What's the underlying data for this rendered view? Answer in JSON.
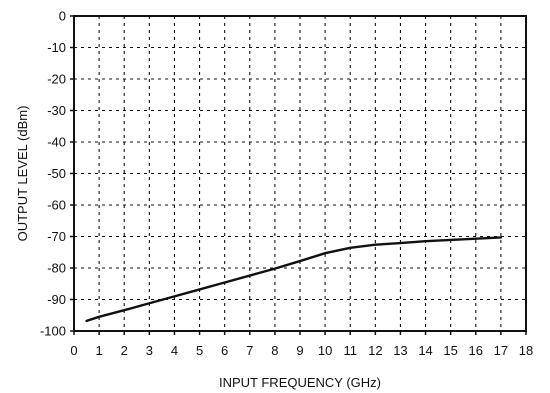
{
  "chart_data": {
    "type": "line",
    "title": "",
    "xlabel": "INPUT FREQUENCY (GHz)",
    "ylabel": "OUTPUT LEVEL (dBm)",
    "xlim": [
      0,
      18
    ],
    "ylim": [
      -100,
      0
    ],
    "grid": true,
    "grid_style": "dashed",
    "colors": {
      "line": "#111111",
      "grid": "#111111",
      "frame": "#111111",
      "text": "#111111",
      "background": "#ffffff"
    },
    "x_ticks": [
      {
        "value": 0,
        "label": "0"
      },
      {
        "value": 1,
        "label": "1"
      },
      {
        "value": 2,
        "label": "2"
      },
      {
        "value": 3,
        "label": "3"
      },
      {
        "value": 4,
        "label": "4"
      },
      {
        "value": 5,
        "label": "5"
      },
      {
        "value": 6,
        "label": "6"
      },
      {
        "value": 7,
        "label": "7"
      },
      {
        "value": 8,
        "label": "8"
      },
      {
        "value": 9,
        "label": "9"
      },
      {
        "value": 10,
        "label": "10"
      },
      {
        "value": 11,
        "label": "11"
      },
      {
        "value": 12,
        "label": "12"
      },
      {
        "value": 13,
        "label": "13"
      },
      {
        "value": 14,
        "label": "14"
      },
      {
        "value": 15,
        "label": "15"
      },
      {
        "value": 16,
        "label": "16"
      },
      {
        "value": 17,
        "label": "17"
      },
      {
        "value": 18,
        "label": "18"
      }
    ],
    "y_ticks": [
      {
        "value": 0,
        "label": "0"
      },
      {
        "value": -10,
        "label": "-10"
      },
      {
        "value": -20,
        "label": "-20"
      },
      {
        "value": -30,
        "label": "-30"
      },
      {
        "value": -40,
        "label": "-40"
      },
      {
        "value": -50,
        "label": "-50"
      },
      {
        "value": -60,
        "label": "-60"
      },
      {
        "value": -70,
        "label": "-70"
      },
      {
        "value": -80,
        "label": "-80"
      },
      {
        "value": -90,
        "label": "-90"
      },
      {
        "value": -100,
        "label": "-100"
      }
    ],
    "series": [
      {
        "x": [
          0.5,
          1,
          2,
          3,
          4,
          5,
          6,
          7,
          8,
          9,
          10,
          11,
          12,
          13,
          14,
          15,
          16,
          17
        ],
        "y": [
          -96.8,
          -95.5,
          -93.4,
          -91.2,
          -89.0,
          -86.8,
          -84.6,
          -82.4,
          -80.2,
          -77.8,
          -75.3,
          -73.6,
          -72.6,
          -72.1,
          -71.5,
          -71.1,
          -70.7,
          -70.3
        ]
      }
    ]
  }
}
